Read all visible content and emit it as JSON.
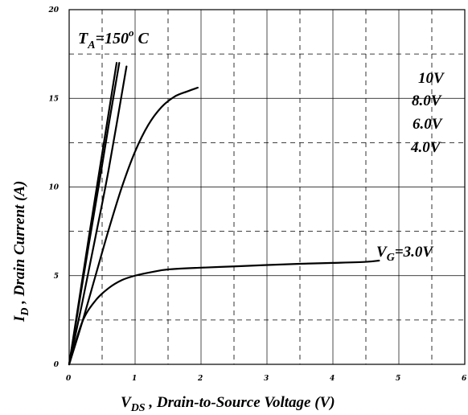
{
  "chart_data": {
    "type": "line",
    "xlabel": "V DS , Drain-to-Source Voltage (V)",
    "ylabel": "I D , Drain Current (A)",
    "xlim": [
      0,
      6
    ],
    "ylim": [
      0,
      20
    ],
    "x_ticks": [
      "0",
      "1",
      "2",
      "3",
      "4",
      "5",
      "6"
    ],
    "y_ticks": [
      "0",
      "5",
      "10",
      "15",
      "20"
    ],
    "grid": "solid major, dashed minor",
    "annotation": "T A =150 o C",
    "series": [
      {
        "name": "10V",
        "x": [
          0,
          0.15,
          0.3,
          0.45,
          0.6,
          0.72
        ],
        "y": [
          0,
          3.6,
          7.2,
          10.7,
          14.2,
          17.0
        ]
      },
      {
        "name": "8.0V",
        "x": [
          0,
          0.15,
          0.3,
          0.45,
          0.6,
          0.76
        ],
        "y": [
          0,
          3.4,
          6.8,
          10.1,
          13.5,
          17.0
        ]
      },
      {
        "name": "6.0V",
        "x": [
          0,
          0.2,
          0.4,
          0.6,
          0.87
        ],
        "y": [
          0,
          3.5,
          7.2,
          11.0,
          16.8
        ]
      },
      {
        "name": "4.0V",
        "x": [
          0,
          0.2,
          0.4,
          0.6,
          0.8,
          1.0,
          1.2,
          1.4,
          1.6,
          1.8,
          1.95
        ],
        "y": [
          0,
          2.4,
          5.0,
          7.6,
          10.0,
          12.0,
          13.5,
          14.5,
          15.1,
          15.4,
          15.6
        ]
      },
      {
        "name": "V G =3.0V",
        "x": [
          0,
          0.2,
          0.4,
          0.6,
          0.8,
          1.0,
          1.25,
          1.5,
          2.0,
          2.5,
          3.0,
          3.5,
          4.0,
          4.5,
          4.7
        ],
        "y": [
          0,
          2.4,
          3.6,
          4.3,
          4.75,
          5.0,
          5.2,
          5.35,
          5.45,
          5.52,
          5.6,
          5.67,
          5.72,
          5.78,
          5.85
        ]
      }
    ]
  }
}
